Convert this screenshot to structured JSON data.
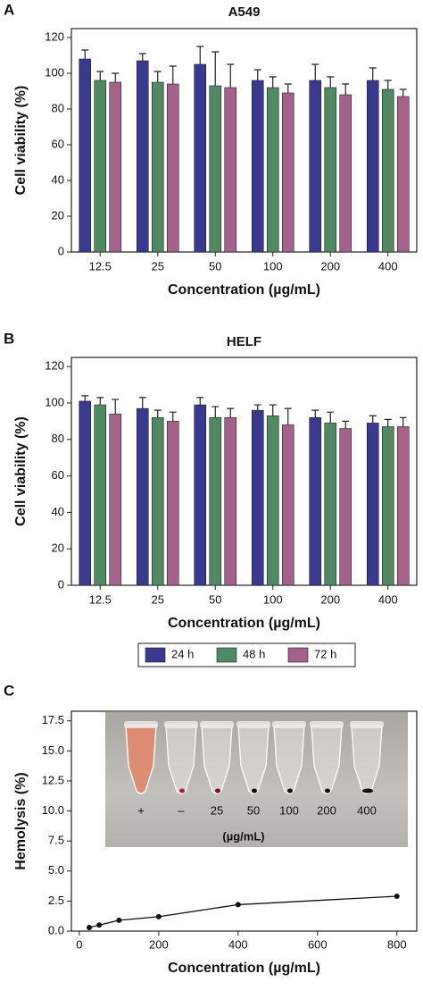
{
  "chart_data": [
    {
      "type": "bar",
      "panel_label": "A",
      "title": "A549",
      "y_label": "Cell viability (%)",
      "x_label": "Concentration (µg/mL)",
      "categories": [
        "12.5",
        "25",
        "50",
        "100",
        "200",
        "400"
      ],
      "ylim": [
        0,
        125
      ],
      "yticks": [
        0,
        20,
        40,
        60,
        80,
        100,
        120
      ],
      "series": [
        {
          "color": "#3a3990",
          "values": [
            108,
            107,
            105,
            96,
            96,
            96
          ],
          "errors": [
            5,
            4,
            10,
            6,
            9,
            7
          ]
        },
        {
          "color": "#4f8a63",
          "values": [
            96,
            95,
            93,
            92,
            92,
            91
          ],
          "errors": [
            5,
            6,
            19,
            6,
            6,
            5
          ]
        },
        {
          "color": "#a4628b",
          "values": [
            95,
            94,
            92,
            89,
            88,
            87
          ],
          "errors": [
            5,
            10,
            13,
            5,
            6,
            4
          ]
        }
      ]
    },
    {
      "type": "bar",
      "panel_label": "B",
      "title": "HELF",
      "y_label": "Cell viability (%)",
      "x_label": "Concentration (µg/mL)",
      "categories": [
        "12.5",
        "25",
        "50",
        "100",
        "200",
        "400"
      ],
      "ylim": [
        0,
        125
      ],
      "yticks": [
        0,
        20,
        40,
        60,
        80,
        100,
        120
      ],
      "series": [
        {
          "name": "24 h",
          "color": "#3a3990",
          "values": [
            101,
            97,
            99,
            96,
            92,
            89
          ],
          "errors": [
            3,
            6,
            4,
            3,
            4,
            4
          ]
        },
        {
          "name": "48 h",
          "color": "#4f8a63",
          "values": [
            99,
            92,
            92,
            93,
            89,
            87
          ],
          "errors": [
            4,
            4,
            6,
            6,
            6,
            4
          ]
        },
        {
          "name": "72 h",
          "color": "#a4628b",
          "values": [
            94,
            90,
            92,
            88,
            86,
            87
          ],
          "errors": [
            8,
            5,
            5,
            9,
            4,
            5
          ]
        }
      ]
    },
    {
      "type": "line",
      "panel_label": "C",
      "y_label": "Hemolysis (%)",
      "x_label": "Concentration (µg/mL)",
      "x": [
        25,
        50,
        100,
        200,
        400,
        800
      ],
      "series": [
        {
          "color": "#111111",
          "values": [
            0.3,
            0.5,
            0.9,
            1.2,
            2.2,
            2.9
          ]
        }
      ],
      "xlim": [
        -20,
        850
      ],
      "xticks": [
        0,
        200,
        400,
        600,
        800
      ],
      "ylim": [
        0,
        18.3
      ],
      "yticks": [
        {
          "value": 0,
          "label": "0.0"
        },
        2.5,
        {
          "value": 5,
          "label": "5.0"
        },
        7.5,
        {
          "value": 10,
          "label": "10.0"
        },
        12.5,
        {
          "value": 15,
          "label": "15.0"
        },
        17.5
      ],
      "inset": {
        "labels": [
          "+",
          "–",
          "25",
          "50",
          "100",
          "200",
          "400"
        ],
        "unit": "(µg/mL)"
      }
    }
  ]
}
